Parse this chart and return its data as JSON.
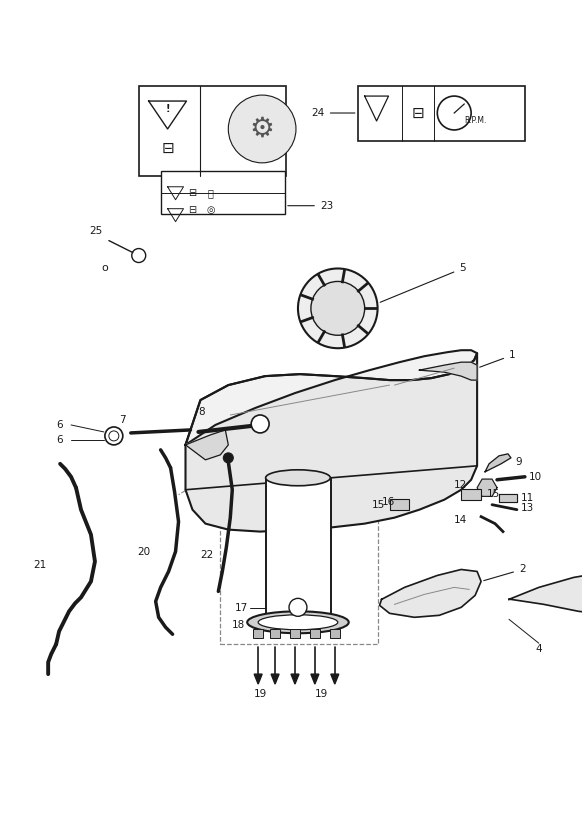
{
  "bg_color": "#ffffff",
  "lc": "#1a1a1a",
  "gray": "#888888",
  "figw": 5.83,
  "figh": 8.24,
  "dpi": 100
}
